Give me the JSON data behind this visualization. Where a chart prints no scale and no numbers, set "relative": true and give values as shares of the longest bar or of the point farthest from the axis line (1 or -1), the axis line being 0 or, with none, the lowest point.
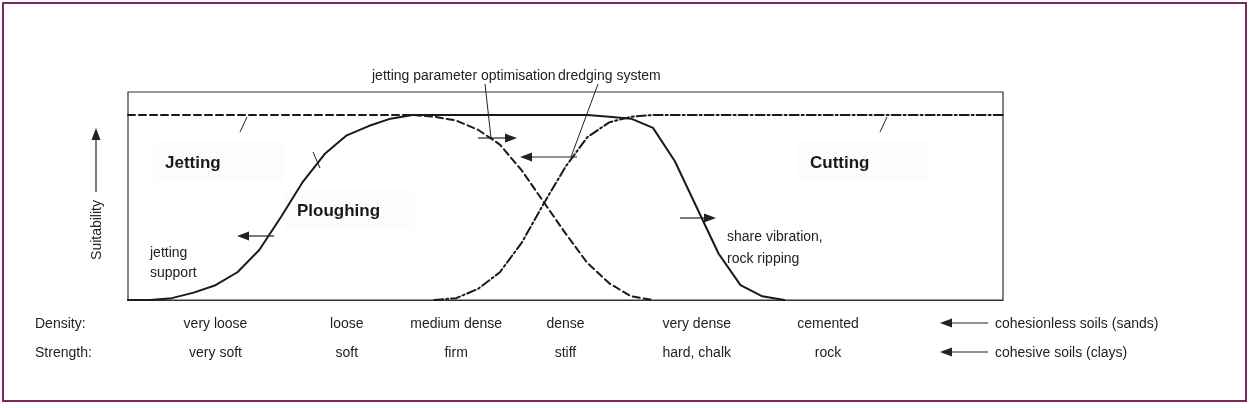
{
  "chart_data": {
    "type": "line",
    "relative": true,
    "ylabel": "Suitability",
    "legend": false,
    "grid": false,
    "marker": "none",
    "categories": [
      null,
      null,
      null,
      null,
      "very loose",
      null,
      null,
      null,
      null,
      null,
      "loose",
      null,
      null,
      null,
      null,
      "medium dense",
      null,
      null,
      null,
      null,
      "dense",
      null,
      null,
      null,
      null,
      null,
      "very dense",
      null,
      null,
      null,
      null,
      null,
      "cemented",
      null,
      null,
      null,
      null,
      null,
      null,
      null,
      null
    ],
    "series": [
      {
        "name": "Jetting",
        "color": "#1a1a1a",
        "line_style": "dashed",
        "values": [
          1,
          1,
          1,
          1,
          1,
          1,
          1,
          1,
          1,
          1,
          1,
          1,
          1,
          1,
          0.99,
          0.97,
          0.92,
          0.84,
          0.7,
          0.53,
          0.36,
          0.2,
          0.09,
          0.02,
          0,
          null,
          null,
          null,
          null,
          null,
          null,
          null,
          null,
          null,
          null,
          null,
          null,
          null,
          null,
          null,
          null
        ]
      },
      {
        "name": "Ploughing",
        "color": "#1a1a1a",
        "line_style": "solid",
        "values": [
          0,
          0,
          0.01,
          0.04,
          0.08,
          0.15,
          0.27,
          0.45,
          0.64,
          0.79,
          0.89,
          0.94,
          0.98,
          1,
          1,
          1,
          1,
          1,
          1,
          1,
          1,
          1,
          0.99,
          0.98,
          0.93,
          0.75,
          0.5,
          0.25,
          0.08,
          0.02,
          0,
          null,
          null,
          null,
          null,
          null,
          null,
          null,
          null,
          null,
          null
        ]
      },
      {
        "name": "Cutting",
        "color": "#1a1a1a",
        "line_style": "dashdot",
        "values": [
          null,
          null,
          null,
          null,
          null,
          null,
          null,
          null,
          null,
          null,
          null,
          null,
          null,
          null,
          0,
          0.01,
          0.06,
          0.15,
          0.31,
          0.52,
          0.72,
          0.88,
          0.96,
          0.99,
          1,
          1,
          1,
          1,
          1,
          1,
          1,
          1,
          1,
          1,
          1,
          1,
          1,
          1,
          1,
          1,
          1
        ]
      }
    ],
    "annotations": [
      "jetting parameter optimisation",
      "dredging system",
      "jetting support",
      "share vibration, rock ripping",
      "Density:",
      "Strength:",
      "very soft",
      "soft",
      "firm",
      "stiff",
      "hard, chalk",
      "rock",
      "cohesionless soils (sands)",
      "cohesive soils (clays)"
    ]
  }
}
